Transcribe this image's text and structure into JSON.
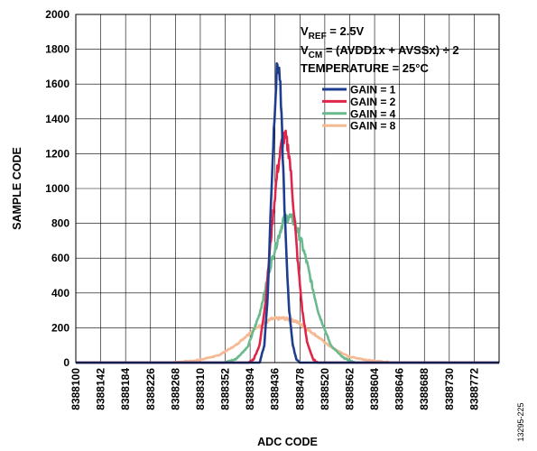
{
  "figure_id": "13295-225",
  "chart_data": {
    "type": "line",
    "title": "",
    "xlabel": "ADC CODE",
    "ylabel": "SAMPLE CODE",
    "xlim": [
      8388100,
      8388814
    ],
    "ylim": [
      0,
      2000
    ],
    "xticks": [
      8388100,
      8388142,
      8388184,
      8388226,
      8388268,
      8388310,
      8388352,
      8388394,
      8388436,
      8388478,
      8388520,
      8388562,
      8388604,
      8388646,
      8388688,
      8388730,
      8388772
    ],
    "xtick_labels": [
      "8388100",
      "8388142",
      "8388184",
      "8388226",
      "8388268",
      "8388310",
      "8388352",
      "8388394",
      "8388436",
      "8388478",
      "8388520",
      "8388562",
      "8388604",
      "8388646",
      "8388688",
      "8388730",
      "8388772"
    ],
    "yticks": [
      0,
      200,
      400,
      600,
      800,
      1000,
      1200,
      1400,
      1600,
      1800,
      2000
    ],
    "ytick_labels": [
      "0",
      "200",
      "400",
      "600",
      "800",
      "1000",
      "1200",
      "1400",
      "1600",
      "1800",
      "2000"
    ],
    "grid": true,
    "legend_position": "upper right inside plot",
    "annotations": [
      {
        "base": "V",
        "sub": "REF",
        "rest": " = 2.5V"
      },
      {
        "base": "V",
        "sub": "CM",
        "rest": " = (AVDD1x + AVSSx) ÷ 2"
      },
      {
        "base": "TEMPERATURE = 25°C",
        "sub": "",
        "rest": ""
      }
    ],
    "series": [
      {
        "name": "GAIN = 1",
        "color": "#1f3d8f",
        "x": [
          8388100,
          8388410,
          8388418,
          8388424,
          8388430,
          8388436,
          8388440,
          8388444,
          8388448,
          8388452,
          8388456,
          8388460,
          8388466,
          8388472,
          8388478,
          8388814
        ],
        "y": [
          0,
          0,
          100,
          400,
          1000,
          1500,
          1720,
          1650,
          1300,
          900,
          550,
          300,
          100,
          20,
          0,
          0
        ]
      },
      {
        "name": "GAIN = 2",
        "color": "#e0254a",
        "x": [
          8388100,
          8388392,
          8388400,
          8388410,
          8388420,
          8388430,
          8388440,
          8388448,
          8388454,
          8388460,
          8388466,
          8388474,
          8388482,
          8388490,
          8388500,
          8388508,
          8388814
        ],
        "y": [
          0,
          0,
          20,
          100,
          350,
          750,
          1100,
          1270,
          1290,
          1200,
          950,
          600,
          300,
          120,
          20,
          0,
          0
        ]
      },
      {
        "name": "GAIN = 4",
        "color": "#6aba8e",
        "x": [
          8388100,
          8388350,
          8388370,
          8388390,
          8388410,
          8388430,
          8388450,
          8388460,
          8388470,
          8388480,
          8388490,
          8388500,
          8388510,
          8388530,
          8388550,
          8388570,
          8388814
        ],
        "y": [
          0,
          0,
          20,
          90,
          280,
          580,
          820,
          840,
          800,
          700,
          570,
          420,
          280,
          100,
          30,
          0,
          0
        ]
      },
      {
        "name": "GAIN = 8",
        "color": "#f5b994",
        "x": [
          8388100,
          8388260,
          8388300,
          8388340,
          8388370,
          8388400,
          8388430,
          8388450,
          8388470,
          8388500,
          8388530,
          8388560,
          8388600,
          8388640,
          8388814
        ],
        "y": [
          0,
          0,
          10,
          40,
          100,
          190,
          250,
          255,
          240,
          170,
          90,
          35,
          10,
          0,
          0
        ]
      }
    ]
  }
}
